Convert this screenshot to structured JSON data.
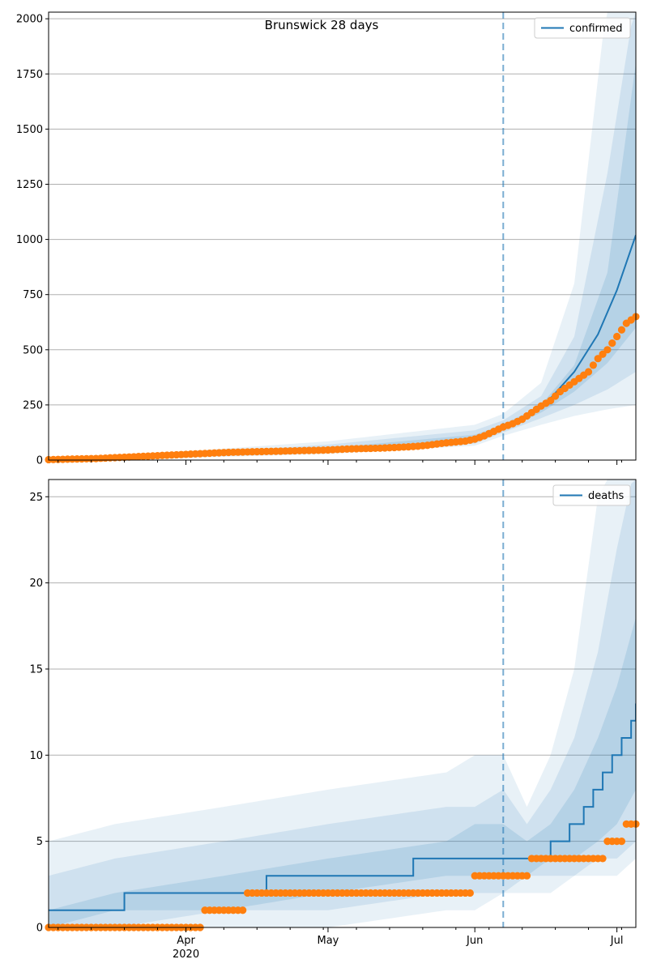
{
  "title": "Brunswick 28 days",
  "colors": {
    "model": "#1f77b4",
    "observed": "#ff7f0e",
    "band": "#1f77b4",
    "grid": "#b0b0b0",
    "forecast_line": "#1f77b4"
  },
  "x_axis": {
    "start": "2020-03-03",
    "end": "2020-07-05",
    "month_ticks": [
      {
        "date": "2020-04-01",
        "label": "Apr",
        "sublabel": "2020"
      },
      {
        "date": "2020-05-01",
        "label": "May",
        "sublabel": ""
      },
      {
        "date": "2020-06-01",
        "label": "Jun",
        "sublabel": ""
      },
      {
        "date": "2020-07-01",
        "label": "Jul",
        "sublabel": ""
      }
    ]
  },
  "forecast_start": "2020-06-07",
  "chart_data": [
    {
      "type": "line",
      "legend": "confirmed",
      "legend_position": "top-right",
      "grid": "horizontal",
      "ylim": [
        0,
        2030
      ],
      "yticks": [
        0,
        250,
        500,
        750,
        1000,
        1250,
        1500,
        1750,
        2000
      ],
      "observed_dates": [
        "2020-03-03",
        "2020-03-05",
        "2020-03-07",
        "2020-03-09",
        "2020-03-11",
        "2020-03-13",
        "2020-03-15",
        "2020-03-17",
        "2020-03-19",
        "2020-03-21",
        "2020-03-23",
        "2020-03-25",
        "2020-03-27",
        "2020-03-29",
        "2020-03-31",
        "2020-04-02",
        "2020-04-04",
        "2020-04-06",
        "2020-04-08",
        "2020-04-10",
        "2020-04-12",
        "2020-04-14",
        "2020-04-16",
        "2020-04-18",
        "2020-04-20",
        "2020-04-22",
        "2020-04-24",
        "2020-04-26",
        "2020-04-28",
        "2020-04-30",
        "2020-05-02",
        "2020-05-04",
        "2020-05-06",
        "2020-05-08",
        "2020-05-10",
        "2020-05-12",
        "2020-05-14",
        "2020-05-16",
        "2020-05-18",
        "2020-05-20",
        "2020-05-22",
        "2020-05-24",
        "2020-05-26",
        "2020-05-28",
        "2020-05-30",
        "2020-06-01",
        "2020-06-03",
        "2020-06-05",
        "2020-06-07",
        "2020-06-09",
        "2020-06-11",
        "2020-06-13",
        "2020-06-15",
        "2020-06-17",
        "2020-06-19",
        "2020-06-21",
        "2020-06-23",
        "2020-06-25",
        "2020-06-27",
        "2020-06-29",
        "2020-07-01",
        "2020-07-03",
        "2020-07-05"
      ],
      "observed_values": [
        2,
        3,
        4,
        5,
        6,
        7,
        9,
        11,
        13,
        15,
        17,
        19,
        21,
        23,
        25,
        27,
        29,
        31,
        33,
        35,
        36,
        37,
        38,
        39,
        40,
        41,
        42,
        43,
        44,
        45,
        47,
        49,
        51,
        52,
        53,
        54,
        56,
        58,
        60,
        63,
        67,
        73,
        78,
        82,
        86,
        95,
        110,
        130,
        150,
        165,
        185,
        215,
        245,
        270,
        310,
        340,
        370,
        400,
        460,
        500,
        560,
        620,
        650
      ],
      "model_dates": [
        "2020-03-03",
        "2020-03-17",
        "2020-04-01",
        "2020-04-16",
        "2020-05-01",
        "2020-05-16",
        "2020-05-26",
        "2020-06-01",
        "2020-06-07",
        "2020-06-12",
        "2020-06-17",
        "2020-06-22",
        "2020-06-27",
        "2020-07-01",
        "2020-07-05"
      ],
      "model_values": [
        2,
        8,
        20,
        32,
        44,
        55,
        70,
        95,
        140,
        200,
        280,
        400,
        570,
        770,
        1020
      ],
      "bands": [
        {
          "dates": [
            "2020-03-03",
            "2020-04-01",
            "2020-05-01",
            "2020-06-01",
            "2020-06-07",
            "2020-06-15",
            "2020-06-22",
            "2020-06-29",
            "2020-07-05"
          ],
          "lower": [
            0,
            10,
            28,
            65,
            110,
            160,
            200,
            230,
            250
          ],
          "upper": [
            10,
            40,
            85,
            160,
            210,
            350,
            800,
            2100,
            2100
          ]
        },
        {
          "dates": [
            "2020-03-03",
            "2020-04-01",
            "2020-05-01",
            "2020-06-01",
            "2020-06-07",
            "2020-06-15",
            "2020-06-22",
            "2020-06-29",
            "2020-07-05"
          ],
          "lower": [
            0,
            14,
            33,
            75,
            125,
            190,
            250,
            320,
            400
          ],
          "upper": [
            6,
            30,
            70,
            135,
            180,
            290,
            560,
            1300,
            2100
          ]
        },
        {
          "dates": [
            "2020-03-03",
            "2020-04-01",
            "2020-05-01",
            "2020-06-01",
            "2020-06-07",
            "2020-06-15",
            "2020-06-22",
            "2020-06-29",
            "2020-07-05"
          ],
          "lower": [
            1,
            17,
            38,
            85,
            135,
            215,
            310,
            440,
            600
          ],
          "upper": [
            4,
            25,
            55,
            115,
            160,
            250,
            430,
            850,
            1800
          ]
        }
      ]
    },
    {
      "type": "line",
      "legend": "deaths",
      "legend_position": "top-right",
      "grid": "horizontal",
      "ylim": [
        0,
        26
      ],
      "yticks": [
        0,
        5,
        10,
        15,
        20,
        25
      ],
      "observed_dates": [
        "2020-03-03",
        "2020-04-01",
        "2020-04-09",
        "2020-04-18",
        "2020-05-31",
        "2020-06-01",
        "2020-06-24",
        "2020-06-27",
        "2020-06-30",
        "2020-07-05"
      ],
      "observed_values": [
        0,
        0,
        1,
        2,
        2,
        3,
        4,
        4,
        5,
        6
      ],
      "model_dates": [
        "2020-03-06",
        "2020-03-31",
        "2020-05-06",
        "2020-05-31",
        "2020-06-14",
        "2020-06-19",
        "2020-06-22",
        "2020-06-25",
        "2020-06-27",
        "2020-06-29",
        "2020-07-01",
        "2020-07-03",
        "2020-07-05"
      ],
      "model_values": [
        1,
        2,
        3,
        4,
        4,
        5,
        6,
        7,
        8,
        9,
        10,
        11,
        13
      ],
      "bands": [
        {
          "dates": [
            "2020-03-03",
            "2020-03-17",
            "2020-04-09",
            "2020-05-01",
            "2020-05-26",
            "2020-06-01",
            "2020-06-07",
            "2020-06-12",
            "2020-06-17",
            "2020-06-22",
            "2020-06-27",
            "2020-07-01",
            "2020-07-05"
          ],
          "lower": [
            0,
            0,
            0,
            0,
            1,
            1,
            2,
            2,
            2,
            3,
            3,
            3,
            4
          ],
          "upper": [
            5,
            6,
            7,
            8,
            9,
            10,
            10,
            7,
            10,
            15,
            25,
            27,
            27
          ]
        },
        {
          "dates": [
            "2020-03-03",
            "2020-03-17",
            "2020-04-09",
            "2020-05-01",
            "2020-05-26",
            "2020-06-01",
            "2020-06-07",
            "2020-06-12",
            "2020-06-17",
            "2020-06-22",
            "2020-06-27",
            "2020-07-01",
            "2020-07-05"
          ],
          "lower": [
            0,
            0,
            1,
            1,
            2,
            2,
            2,
            3,
            3,
            3,
            4,
            4,
            5
          ],
          "upper": [
            3,
            4,
            5,
            6,
            7,
            7,
            8,
            6,
            8,
            11,
            16,
            22,
            27
          ]
        },
        {
          "dates": [
            "2020-03-03",
            "2020-03-17",
            "2020-04-09",
            "2020-05-01",
            "2020-05-26",
            "2020-06-01",
            "2020-06-07",
            "2020-06-12",
            "2020-06-17",
            "2020-06-22",
            "2020-06-27",
            "2020-07-01",
            "2020-07-05"
          ],
          "lower": [
            0,
            1,
            1,
            2,
            3,
            3,
            3,
            3,
            4,
            4,
            5,
            6,
            8
          ],
          "upper": [
            1,
            2,
            3,
            4,
            5,
            6,
            6,
            5,
            6,
            8,
            11,
            14,
            18
          ]
        }
      ]
    }
  ]
}
